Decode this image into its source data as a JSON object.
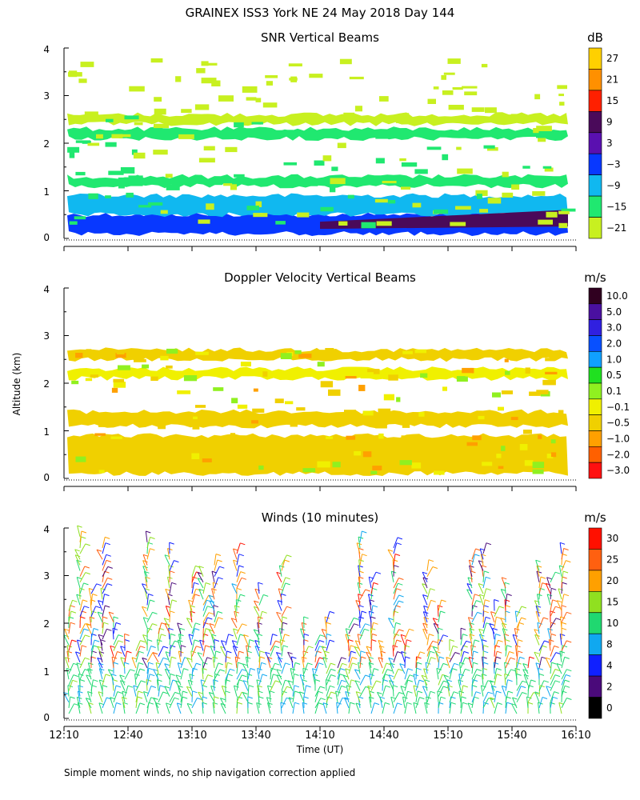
{
  "chart_data": {
    "title": "GRAINEX ISS3 York NE  24 May 2018 Day 144",
    "xlabel": "Time (UT)",
    "ylabel": "Altitude (km)",
    "x_ticks": [
      "12:10",
      "12:40",
      "13:10",
      "13:40",
      "14:10",
      "14:40",
      "15:10",
      "15:40",
      "16:10"
    ],
    "footnote": "Simple moment winds, no ship navigation correction applied",
    "panels": [
      {
        "type": "heatmap",
        "title": "SNR Vertical Beams",
        "units": "dB",
        "ylim": [
          0,
          4
        ],
        "y_ticks": [
          "0",
          "1",
          "2",
          "3",
          "4"
        ],
        "colorbar": {
          "labels": [
            "27",
            "21",
            "15",
            "9",
            "3",
            "−3",
            "−9",
            "−15",
            "−21"
          ],
          "colors": [
            "#ffd000",
            "#ff9000",
            "#ff2000",
            "#4a0a5a",
            "#5a10b0",
            "#0838ff",
            "#10b8f0",
            "#20e870",
            "#c8f020"
          ]
        },
        "layers": [
          {
            "alt_bottom": 0.1,
            "alt_top": 0.5,
            "level": "-3 to 3",
            "color": "#0838ff"
          },
          {
            "alt_bottom": 0.5,
            "alt_top": 0.9,
            "level": "-9 to -3",
            "color": "#10b8f0"
          },
          {
            "alt_bottom": 1.1,
            "alt_top": 1.3,
            "level": "-15 to -9",
            "color": "#20e870"
          },
          {
            "alt_bottom": 2.1,
            "alt_top": 2.3,
            "level": "-15 to -9",
            "color": "#20e870"
          },
          {
            "alt_bottom": 2.4,
            "alt_top": 2.6,
            "level": "-21 to -15",
            "color": "#c8f020"
          }
        ]
      },
      {
        "type": "heatmap",
        "title": "Doppler Velocity Vertical Beams",
        "units": "m/s",
        "ylim": [
          0,
          4
        ],
        "y_ticks": [
          "0",
          "1",
          "2",
          "3",
          "4"
        ],
        "colorbar": {
          "labels": [
            "10.0",
            "5.0",
            "3.0",
            "2.0",
            "1.0",
            "0.5",
            "0.1",
            "−0.1",
            "−0.5",
            "−1.0",
            "−2.0",
            "−3.0"
          ],
          "colors": [
            "#300020",
            "#4a10a0",
            "#3020e0",
            "#0850ff",
            "#10a0ff",
            "#20e020",
            "#90f020",
            "#f0f000",
            "#f0d000",
            "#ffa000",
            "#ff6000",
            "#ff1010"
          ]
        },
        "layers": [
          {
            "alt_bottom": 0.1,
            "alt_top": 0.9,
            "level": "-0.5 to -0.1",
            "color": "#f0d000"
          },
          {
            "alt_bottom": 1.1,
            "alt_top": 1.4,
            "level": "-0.5 to -0.1",
            "color": "#f0d000"
          },
          {
            "alt_bottom": 2.1,
            "alt_top": 2.3,
            "level": "-0.1 to 0.1",
            "color": "#f0f000"
          },
          {
            "alt_bottom": 2.5,
            "alt_top": 2.7,
            "level": "-0.5 to -0.1",
            "color": "#f0d000"
          }
        ]
      },
      {
        "type": "wind_barbs",
        "title": "Winds (10 minutes)",
        "units": "m/s",
        "ylim": [
          0,
          4
        ],
        "y_ticks": [
          "0",
          "1",
          "2",
          "3",
          "4"
        ],
        "colorbar": {
          "labels": [
            "30",
            "25",
            "20",
            "15",
            "10",
            "8",
            "4",
            "2",
            "0"
          ],
          "colors": [
            "#ff1000",
            "#ff6010",
            "#ffa000",
            "#90e020",
            "#20d870",
            "#10a8f0",
            "#1020ff",
            "#4a0a7a",
            "#000000"
          ]
        }
      }
    ]
  }
}
